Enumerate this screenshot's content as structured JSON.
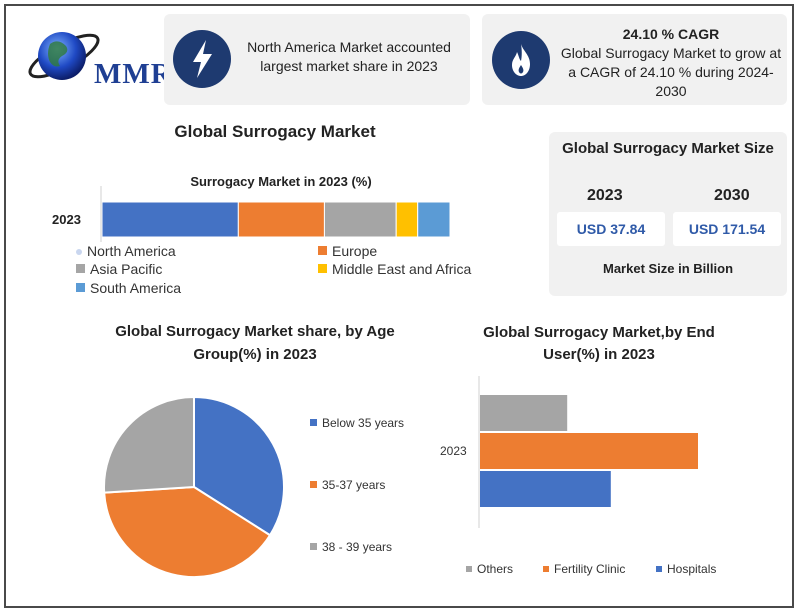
{
  "logo": {
    "text": "MMR"
  },
  "highlights": {
    "north_america": "North America Market accounted largest market share in 2023",
    "cagr_title": "24.10 % CAGR",
    "cagr_text": "Global Surrogacy Market to grow at a CAGR of 24.10 % during 2024-2030"
  },
  "main_title": "Global Surrogacy Market",
  "market_size": {
    "title": "Global Surrogacy Market Size",
    "year_a": "2023",
    "year_b": "2030",
    "value_a": "USD 37.84",
    "value_b": "USD 171.54",
    "unit": "Market Size in Billion"
  },
  "colors": {
    "blue": "#4472c4",
    "orange": "#ed7d31",
    "gray": "#a5a5a5",
    "yellow": "#ffc000",
    "lightblue": "#5b9bd5",
    "navy": "#1e3a70"
  },
  "icons": {
    "card1": "lightning-icon",
    "card2": "flame-icon",
    "logo": "globe-icon"
  },
  "chart_data": [
    {
      "type": "bar",
      "orientation": "horizontal-stacked",
      "title": "Surrogacy Market in 2023 (%)",
      "categories": [
        "2023"
      ],
      "series": [
        {
          "name": "North America",
          "values": [
            38
          ]
        },
        {
          "name": "Europe",
          "values": [
            24
          ]
        },
        {
          "name": "Asia Pacific",
          "values": [
            20
          ]
        },
        {
          "name": "Middle East and Africa",
          "values": [
            6
          ]
        },
        {
          "name": "South America",
          "values": [
            9
          ]
        }
      ]
    },
    {
      "type": "pie",
      "title": "Global Surrogacy Market share, by Age Group(%) in 2023",
      "labels": [
        "Below 35 years",
        "35-37 years",
        "38 - 39 years"
      ],
      "values": [
        34,
        40,
        26
      ]
    },
    {
      "type": "bar",
      "orientation": "horizontal",
      "title": "Global Surrogacy Market,by End User(%) in 2023",
      "categories": [
        "2023"
      ],
      "series": [
        {
          "name": "Others",
          "values": [
            20
          ]
        },
        {
          "name": "Fertility Clinic",
          "values": [
            50
          ]
        },
        {
          "name": "Hospitals",
          "values": [
            30
          ]
        }
      ]
    }
  ]
}
